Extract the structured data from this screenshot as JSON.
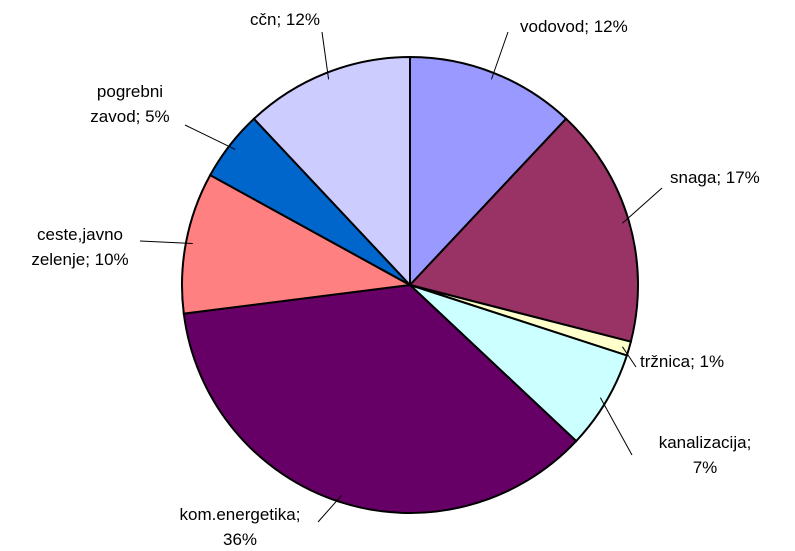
{
  "chart_data": {
    "type": "pie",
    "values": [
      12,
      17,
      1,
      7,
      36,
      10,
      5,
      12
    ],
    "value_labels": [
      [
        "vodovod; 12%"
      ],
      [
        "snaga; 17%"
      ],
      [
        "tržnica; 1%"
      ],
      [
        "kanalizacija;",
        "7%"
      ],
      [
        "kom.energetika;",
        "36%"
      ],
      [
        "ceste,javno",
        "zelenje; 10%"
      ],
      [
        "pogrebni",
        "zavod; 5%"
      ],
      [
        "cčn; 12%"
      ]
    ],
    "colors": [
      "#9999ff",
      "#993366",
      "#ffffcc",
      "#ccffff",
      "#660066",
      "#ff8080",
      "#0066cc",
      "#ccccff"
    ]
  }
}
